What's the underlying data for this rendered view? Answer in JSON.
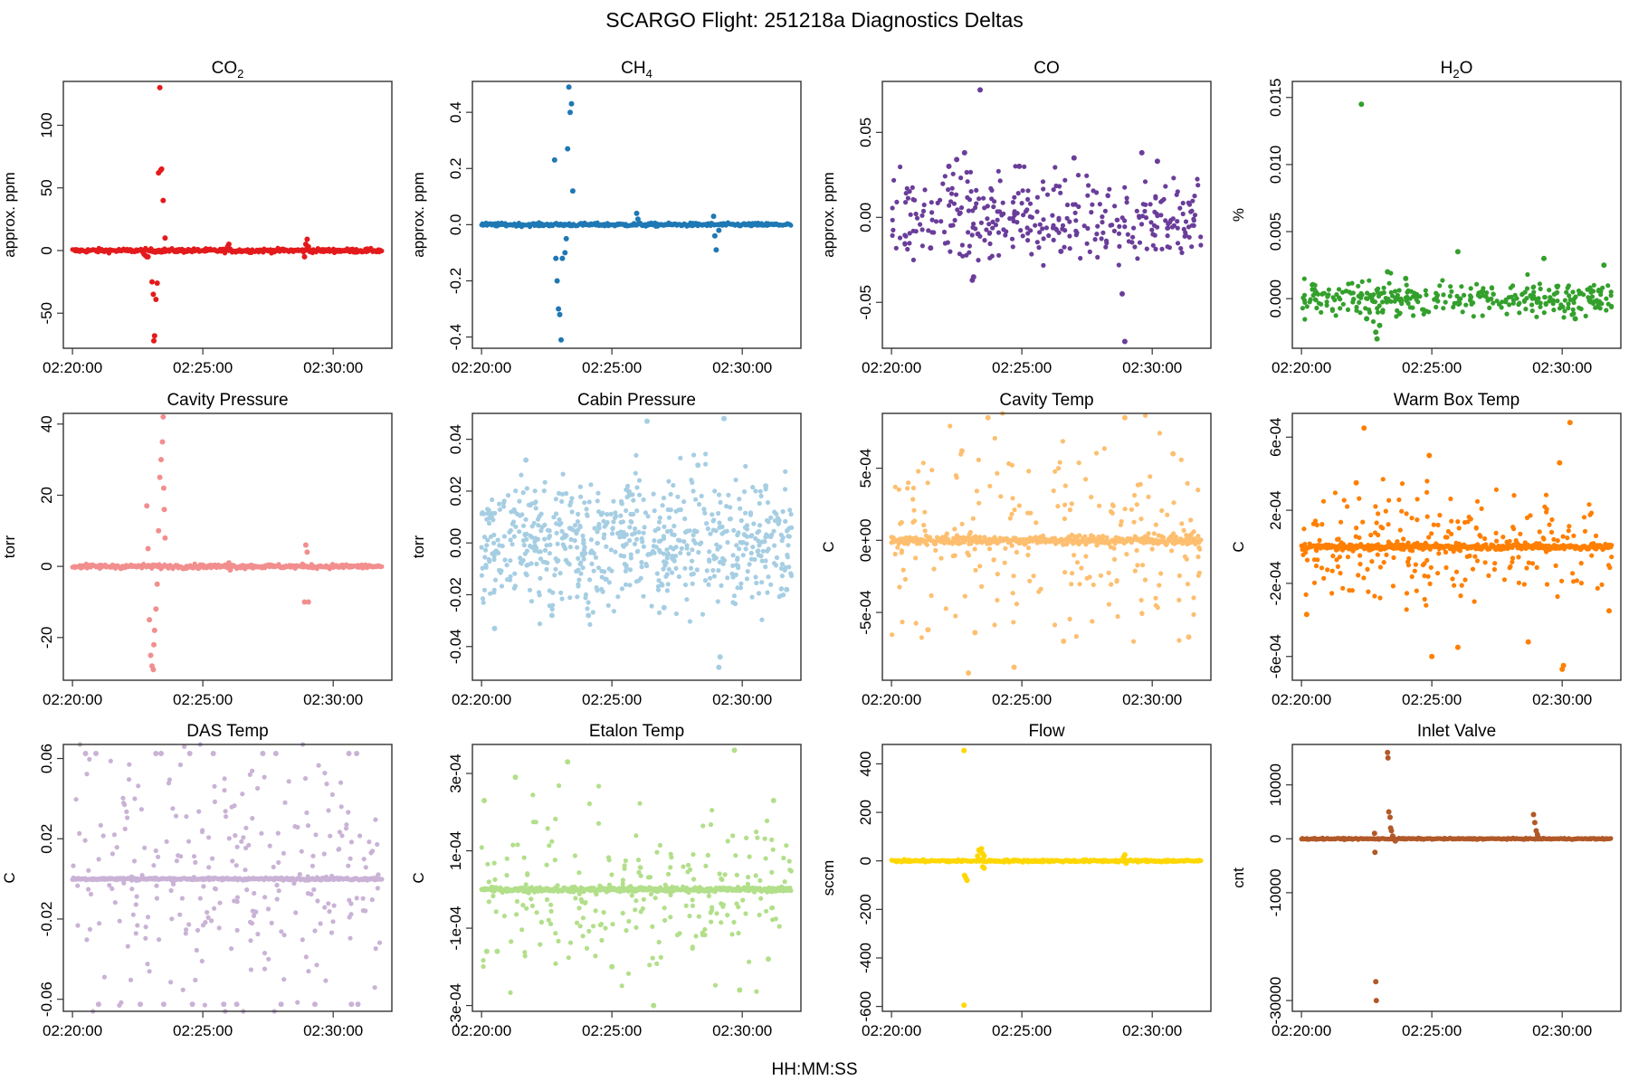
{
  "chart_data": {
    "title": "SCARGO Flight: 251218a  Diagnostics Deltas",
    "xlabel": "HH:MM:SS",
    "type": "scatter",
    "x_ticks": [
      "02:20:00",
      "02:25:00",
      "02:30:00"
    ],
    "x_range_minutes": [
      0,
      11.9
    ],
    "panels": [
      {
        "name": "co2",
        "title_base": "CO",
        "title_sub": "2",
        "ylabel": "approx. ppm",
        "color": "#e31a1c",
        "ylim": [
          -78,
          135
        ],
        "yticks": [
          -50,
          0,
          50,
          100
        ],
        "ytick_labels": [
          "-50",
          "0",
          "50",
          "100"
        ],
        "baseline": 0,
        "base_from": 0,
        "base_to": 11.9,
        "noise": 0.8,
        "scatter_n": 0,
        "scatter_spread": 0,
        "events": [
          [
            2.75,
            -3
          ],
          [
            2.8,
            -4
          ],
          [
            2.85,
            -5
          ],
          [
            2.9,
            -5
          ],
          [
            3.05,
            -25
          ],
          [
            3.1,
            -35
          ],
          [
            3.12,
            -72
          ],
          [
            3.15,
            -68
          ],
          [
            3.2,
            -39
          ],
          [
            3.25,
            -26
          ],
          [
            3.3,
            62
          ],
          [
            3.35,
            130
          ],
          [
            3.38,
            64
          ],
          [
            3.42,
            65
          ],
          [
            3.48,
            40
          ],
          [
            3.55,
            10
          ],
          [
            5.95,
            3
          ],
          [
            6.0,
            5
          ],
          [
            8.9,
            -5
          ],
          [
            8.95,
            5
          ],
          [
            9.0,
            9
          ],
          [
            9.05,
            3
          ]
        ]
      },
      {
        "name": "ch4",
        "title_base": "CH",
        "title_sub": "4",
        "ylabel": "approx. ppm",
        "color": "#1f78b4",
        "ylim": [
          -0.44,
          0.51
        ],
        "yticks": [
          -0.4,
          -0.2,
          0.0,
          0.2,
          0.4
        ],
        "ytick_labels": [
          "-0.4",
          "-0.2",
          "0.0",
          "0.2",
          "0.4"
        ],
        "baseline": 0,
        "base_from": 0,
        "base_to": 11.9,
        "noise": 0.003,
        "scatter_n": 0,
        "scatter_spread": 0,
        "events": [
          [
            2.8,
            0.23
          ],
          [
            2.85,
            -0.12
          ],
          [
            2.9,
            -0.2
          ],
          [
            2.95,
            -0.3
          ],
          [
            3.0,
            -0.32
          ],
          [
            3.05,
            -0.41
          ],
          [
            3.1,
            -0.12
          ],
          [
            3.2,
            -0.1
          ],
          [
            3.25,
            -0.05
          ],
          [
            3.3,
            0.27
          ],
          [
            3.35,
            0.49
          ],
          [
            3.4,
            0.4
          ],
          [
            3.45,
            0.43
          ],
          [
            3.5,
            0.12
          ],
          [
            5.95,
            0.04
          ],
          [
            6.0,
            0.02
          ],
          [
            8.9,
            0.03
          ],
          [
            8.95,
            -0.04
          ],
          [
            9.0,
            -0.09
          ],
          [
            9.1,
            -0.02
          ]
        ]
      },
      {
        "name": "co",
        "title_base": "CO",
        "title_sub": "",
        "ylabel": "approx. ppm",
        "color": "#6a3d9a",
        "ylim": [
          -0.077,
          0.08
        ],
        "yticks": [
          -0.05,
          0.0,
          0.05
        ],
        "ytick_labels": [
          "-0.05",
          "0.00",
          "0.05"
        ],
        "baseline": 0,
        "base_from": 0,
        "base_to": 0,
        "noise": 0,
        "scatter_n": 340,
        "scatter_spread": 0.012,
        "events": [
          [
            3.4,
            0.075
          ],
          [
            8.95,
            -0.073
          ],
          [
            2.8,
            0.038
          ],
          [
            2.5,
            0.034
          ],
          [
            2.2,
            0.03
          ],
          [
            3.1,
            -0.037
          ],
          [
            3.15,
            -0.035
          ],
          [
            8.85,
            -0.045
          ],
          [
            9.6,
            0.038
          ],
          [
            4.9,
            0.03
          ],
          [
            7.0,
            0.035
          ],
          [
            10.2,
            0.033
          ],
          [
            1.5,
            -0.018
          ],
          [
            6.5,
            -0.02
          ]
        ]
      },
      {
        "name": "h2o",
        "title_base": "H",
        "title_sub": "2",
        "title_tail": "O",
        "ylabel": "%",
        "color": "#33a02c",
        "ylim": [
          -0.0037,
          0.0162
        ],
        "yticks": [
          0.0,
          0.005,
          0.01,
          0.015
        ],
        "ytick_labels": [
          "0.000",
          "0.005",
          "0.010",
          "0.015"
        ],
        "baseline": 0,
        "base_from": 0,
        "base_to": 0,
        "noise": 0,
        "scatter_n": 330,
        "scatter_spread": 0.00065,
        "events": [
          [
            2.3,
            0.0145
          ],
          [
            2.9,
            -0.003
          ],
          [
            2.85,
            -0.0025
          ],
          [
            3.0,
            -0.002
          ],
          [
            3.3,
            0.002
          ],
          [
            6.0,
            0.0035
          ],
          [
            9.3,
            0.003
          ],
          [
            11.6,
            0.0025
          ],
          [
            2.5,
            -0.0015
          ],
          [
            4.0,
            0.0015
          ],
          [
            10.5,
            -0.0015
          ]
        ]
      },
      {
        "name": "cavity-pressure",
        "title_base": "Cavity Pressure",
        "title_sub": "",
        "ylabel": "torr",
        "color": "#f28e8e",
        "ylim": [
          -32,
          43
        ],
        "yticks": [
          -20,
          0,
          20,
          40
        ],
        "ytick_labels": [
          "-20",
          "0",
          "20",
          "40"
        ],
        "baseline": 0,
        "base_from": 0,
        "base_to": 11.9,
        "noise": 0.3,
        "scatter_n": 0,
        "scatter_spread": 0,
        "events": [
          [
            2.85,
            17
          ],
          [
            2.9,
            5
          ],
          [
            2.95,
            -15
          ],
          [
            3.0,
            -25
          ],
          [
            3.05,
            -28
          ],
          [
            3.1,
            -29
          ],
          [
            3.12,
            -22
          ],
          [
            3.15,
            -18
          ],
          [
            3.2,
            -12
          ],
          [
            3.25,
            -5
          ],
          [
            3.3,
            10
          ],
          [
            3.35,
            25
          ],
          [
            3.4,
            30
          ],
          [
            3.45,
            35
          ],
          [
            3.48,
            42
          ],
          [
            3.5,
            22
          ],
          [
            3.52,
            16
          ],
          [
            3.55,
            8
          ],
          [
            6.0,
            1
          ],
          [
            6.05,
            -1
          ],
          [
            8.9,
            -10
          ],
          [
            8.95,
            6
          ],
          [
            9.0,
            4
          ],
          [
            9.05,
            -10
          ]
        ]
      },
      {
        "name": "cabin-pressure",
        "title_base": "Cabin Pressure",
        "title_sub": "",
        "ylabel": "torr",
        "color": "#a6cee3",
        "ylim": [
          -0.053,
          0.05
        ],
        "yticks": [
          -0.04,
          -0.02,
          0.0,
          0.02,
          0.04
        ],
        "ytick_labels": [
          "-0.04",
          "-0.02",
          "0.00",
          "0.02",
          "0.04"
        ],
        "baseline": 0,
        "base_from": 0,
        "base_to": 0,
        "noise": 0,
        "scatter_n": 700,
        "scatter_spread": 0.012,
        "events": [
          [
            9.1,
            -0.048
          ],
          [
            9.15,
            -0.044
          ],
          [
            9.3,
            0.048
          ],
          [
            6.35,
            0.047
          ],
          [
            0.5,
            -0.033
          ],
          [
            4.1,
            -0.028
          ],
          [
            7.0,
            -0.025
          ],
          [
            8.3,
            0.03
          ],
          [
            1.7,
            0.032
          ],
          [
            10.9,
            0.022
          ],
          [
            11.7,
            -0.018
          ],
          [
            2.7,
            -0.028
          ]
        ]
      },
      {
        "name": "cavity-temp",
        "title_base": "Cavity Temp",
        "title_sub": "",
        "ylabel": "C",
        "color": "#fdbf6f",
        "ylim": [
          -0.00097,
          0.00088
        ],
        "yticks": [
          -0.0005,
          0.0,
          0.0005
        ],
        "ytick_labels": [
          "-5e-04",
          "0e+00",
          "5e-04"
        ],
        "baseline": 0,
        "base_from": 0,
        "base_to": 11.9,
        "noise": 1.5e-05,
        "scatter_n": 230,
        "scatter_spread": 0.00032,
        "events": [
          [
            3.7,
            0.00085
          ],
          [
            8.95,
            0.00085
          ],
          [
            2.95,
            -0.00092
          ],
          [
            4.7,
            -0.00088
          ],
          [
            2.7,
            0.00062
          ],
          [
            10.8,
            0.0006
          ],
          [
            6.6,
            -0.0007
          ],
          [
            3.2,
            -0.00064
          ],
          [
            11.4,
            -0.00067
          ],
          [
            1.4,
            -0.00062
          ]
        ]
      },
      {
        "name": "warm-box-temp",
        "title_base": "Warm Box Temp",
        "title_sub": "",
        "ylabel": "C",
        "color": "#ff7f00",
        "ylim": [
          -0.00073,
          0.00073
        ],
        "yticks": [
          -0.0006,
          -0.0002,
          0.0002,
          0.0006
        ],
        "ytick_labels": [
          "-6e-04",
          "-2e-04",
          "2e-04",
          "6e-04"
        ],
        "baseline": 0,
        "base_from": 0,
        "base_to": 11.9,
        "noise": 8e-06,
        "scatter_n": 240,
        "scatter_spread": 0.00015,
        "events": [
          [
            2.4,
            0.00065
          ],
          [
            10.3,
            0.00068
          ],
          [
            10.0,
            -0.00067
          ],
          [
            10.05,
            -0.00065
          ],
          [
            5.0,
            -0.0006
          ],
          [
            6.0,
            -0.00055
          ],
          [
            8.7,
            -0.00052
          ],
          [
            4.9,
            0.0005
          ],
          [
            9.9,
            0.00046
          ],
          [
            2.1,
            0.00035
          ],
          [
            0.2,
            -0.00037
          ],
          [
            11.8,
            -0.00035
          ]
        ]
      },
      {
        "name": "das-temp",
        "title_base": "DAS Temp",
        "title_sub": "",
        "ylabel": "C",
        "color": "#cab2d6",
        "ylim": [
          -0.066,
          0.067
        ],
        "yticks": [
          -0.06,
          -0.02,
          0.02,
          0.06
        ],
        "ytick_labels": [
          "-0.06",
          "-0.02",
          "0.02",
          "0.06"
        ],
        "baseline": 0,
        "base_from": 0,
        "base_to": 11.9,
        "noise": 0.0003,
        "scatter_n": 260,
        "scatter_spread": 0.032,
        "events": [
          [
            0.5,
            0.0625
          ],
          [
            0.9,
            0.0625
          ],
          [
            3.2,
            0.0625
          ],
          [
            3.4,
            0.0625
          ],
          [
            4.5,
            0.0625
          ],
          [
            5.4,
            0.0625
          ],
          [
            7.3,
            0.0625
          ],
          [
            7.8,
            0.0625
          ],
          [
            10.6,
            0.0625
          ],
          [
            10.9,
            0.0625
          ],
          [
            1.0,
            -0.0625
          ],
          [
            2.6,
            -0.0625
          ],
          [
            3.5,
            -0.0625
          ],
          [
            4.6,
            -0.0625
          ],
          [
            5.8,
            -0.0625
          ],
          [
            6.3,
            -0.0625
          ],
          [
            8.0,
            -0.0625
          ],
          [
            9.3,
            -0.0625
          ],
          [
            10.7,
            -0.0625
          ],
          [
            10.95,
            -0.0625
          ]
        ]
      },
      {
        "name": "etalon-temp",
        "title_base": "Etalon Temp",
        "title_sub": "",
        "ylabel": "C",
        "color": "#b2df8a",
        "ylim": [
          -0.000315,
          0.000375
        ],
        "yticks": [
          -0.0003,
          -0.0001,
          0.0001,
          0.0003
        ],
        "ytick_labels": [
          "-3e-04",
          "-1e-04",
          "1e-04",
          "3e-04"
        ],
        "baseline": 0,
        "base_from": 0,
        "base_to": 11.9,
        "noise": 3e-06,
        "scatter_n": 230,
        "scatter_spread": 0.00011,
        "events": [
          [
            9.7,
            0.00036
          ],
          [
            3.3,
            0.00033
          ],
          [
            1.3,
            0.00029
          ],
          [
            6.6,
            -0.0003
          ],
          [
            0.1,
            0.00023
          ],
          [
            11.2,
            0.00023
          ],
          [
            9.9,
            -0.00026
          ],
          [
            5.0,
            -0.0002
          ],
          [
            11.0,
            -0.00018
          ],
          [
            0.2,
            -0.00016
          ],
          [
            0.6,
            -0.00016
          ]
        ]
      },
      {
        "name": "flow",
        "title_base": "Flow",
        "title_sub": "",
        "ylabel": "sccm",
        "color": "#ffd700",
        "ylim": [
          -620,
          480
        ],
        "yticks": [
          -600,
          -400,
          -200,
          0,
          200,
          400
        ],
        "ytick_labels": [
          "-600",
          "-400",
          "-200",
          "0",
          "200",
          "400"
        ],
        "baseline": 0,
        "base_from": 0,
        "base_to": 11.9,
        "noise": 2.5,
        "scatter_n": 0,
        "scatter_spread": 0,
        "events": [
          [
            2.78,
            455
          ],
          [
            2.78,
            -595
          ],
          [
            2.8,
            -60
          ],
          [
            2.85,
            -70
          ],
          [
            2.9,
            -80
          ],
          [
            3.3,
            20
          ],
          [
            3.35,
            45
          ],
          [
            3.4,
            40
          ],
          [
            3.45,
            50
          ],
          [
            3.5,
            30
          ],
          [
            3.55,
            20
          ],
          [
            3.5,
            -25
          ],
          [
            3.55,
            -30
          ],
          [
            8.9,
            15
          ],
          [
            8.95,
            25
          ],
          [
            9.0,
            -10
          ]
        ]
      },
      {
        "name": "inlet-valve",
        "title_base": "Inlet Valve",
        "title_sub": "",
        "ylabel": "cnt",
        "color": "#b15928",
        "ylim": [
          -32000,
          17500
        ],
        "yticks": [
          -30000,
          -10000,
          0,
          10000
        ],
        "ytick_labels": [
          "-30000",
          "-10000",
          "0",
          "10000"
        ],
        "baseline": 0,
        "base_from": 0,
        "base_to": 11.9,
        "noise": 60,
        "scatter_n": 0,
        "scatter_spread": 0,
        "events": [
          [
            2.8,
            1000
          ],
          [
            2.82,
            -2500
          ],
          [
            2.85,
            -26500
          ],
          [
            2.87,
            -30000
          ],
          [
            3.3,
            16000
          ],
          [
            3.32,
            15000
          ],
          [
            3.35,
            5000
          ],
          [
            3.4,
            4000
          ],
          [
            3.42,
            2000
          ],
          [
            3.45,
            1500
          ],
          [
            3.5,
            500
          ],
          [
            3.6,
            -400
          ],
          [
            8.9,
            4500
          ],
          [
            8.95,
            3000
          ],
          [
            9.0,
            1500
          ],
          [
            9.05,
            800
          ],
          [
            9.1,
            200
          ]
        ]
      }
    ]
  }
}
